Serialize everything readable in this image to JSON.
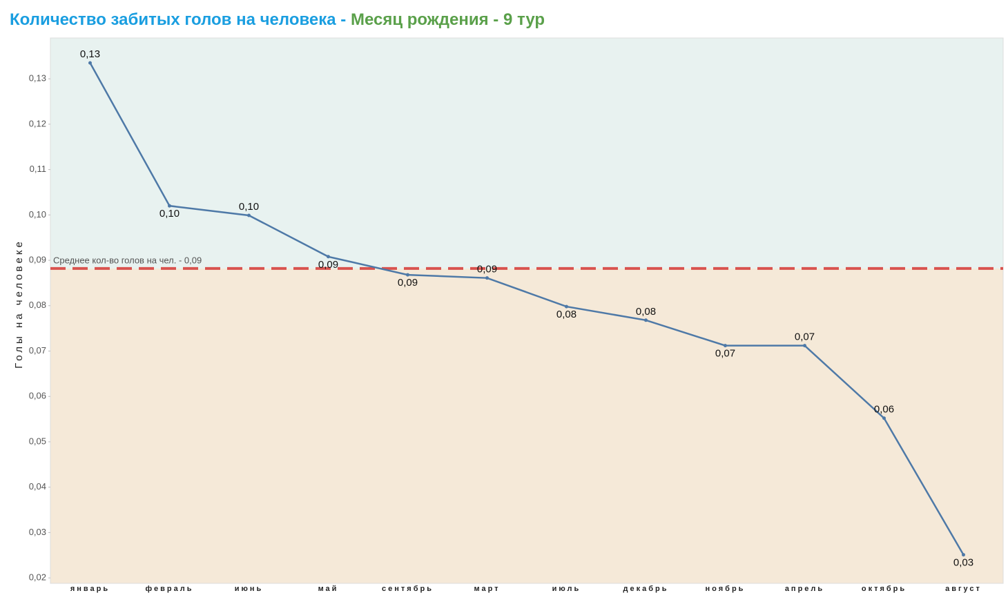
{
  "chart_data": {
    "type": "line",
    "title": {
      "part1": "Количество забитых голов на человека - ",
      "part2": "Месяц рождения - 9 тур"
    },
    "y_label": "Голы на человеке",
    "categories": [
      "январь",
      "февраль",
      "июнь",
      "май",
      "сентябрь",
      "март",
      "июль",
      "декабрь",
      "ноябрь",
      "апрель",
      "октябрь",
      "август"
    ],
    "series": [
      {
        "name": "Голы на человеке",
        "color": "#4e79a7",
        "values": [
          0.1335,
          0.102,
          0.0999,
          0.0908,
          0.0868,
          0.0861,
          0.0798,
          0.0768,
          0.0712,
          0.0712,
          0.0552,
          0.0251
        ],
        "value_labels": [
          "0,13",
          "0,10",
          "0,10",
          "0,09",
          "0,09",
          "0,09",
          "0,08",
          "0,08",
          "0,07",
          "0,07",
          "0,06",
          "0,03"
        ]
      }
    ],
    "reference_line": {
      "value": 0.0882,
      "label": "Среднее кол-во голов на чел. - 0,09",
      "color": "#d9534f"
    },
    "band_colors": {
      "above": "#e8f2f0",
      "below": "#f5e9d8"
    },
    "ylim": [
      0.0188,
      0.139
    ],
    "yticks": [
      {
        "value": 0.02,
        "label": "0,02"
      },
      {
        "value": 0.03,
        "label": "0,03"
      },
      {
        "value": 0.04,
        "label": "0,04"
      },
      {
        "value": 0.05,
        "label": "0,05"
      },
      {
        "value": 0.06,
        "label": "0,06"
      },
      {
        "value": 0.07,
        "label": "0,07"
      },
      {
        "value": 0.08,
        "label": "0,08"
      },
      {
        "value": 0.09,
        "label": "0,09"
      },
      {
        "value": 0.1,
        "label": "0,10"
      },
      {
        "value": 0.11,
        "label": "0,11"
      },
      {
        "value": 0.12,
        "label": "0,12"
      },
      {
        "value": 0.13,
        "label": "0,13"
      }
    ]
  }
}
